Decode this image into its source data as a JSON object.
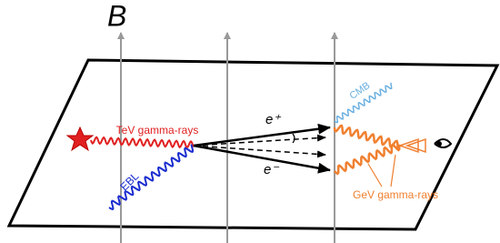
{
  "field_label": "B",
  "labels": {
    "tev": "TeV gamma-rays",
    "ebl": "EBL",
    "e_plus": "e⁺",
    "e_minus": "e⁻",
    "cmb": "CMB",
    "gev": "GeV gamma-rays"
  }
}
